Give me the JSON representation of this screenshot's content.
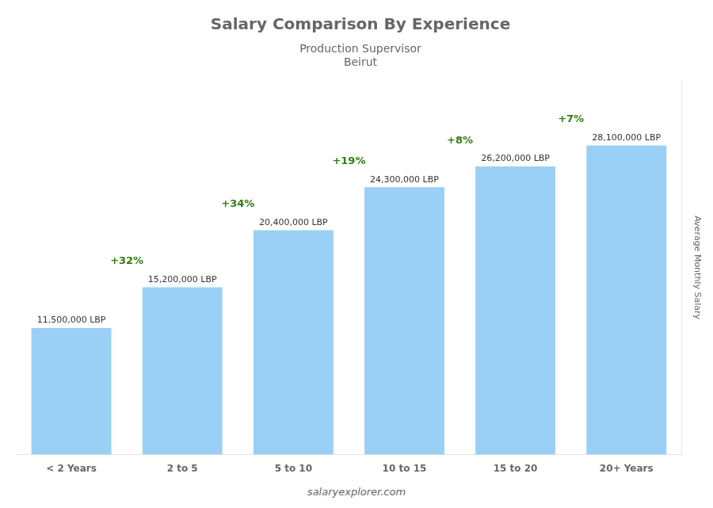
{
  "chart_data": {
    "type": "bar",
    "title": "Salary Comparison By Experience",
    "subtitle": [
      "Production Supervisor",
      "Beirut"
    ],
    "ylabel": "Average Monthly Salary",
    "footer": "salaryexplorer.com",
    "categories": [
      "< 2 Years",
      "2 to 5",
      "5 to 10",
      "10 to 15",
      "15 to 20",
      "20+ Years"
    ],
    "values": [
      11500000,
      15200000,
      20400000,
      24300000,
      26200000,
      28100000
    ],
    "value_labels": [
      "11,500,000 LBP",
      "15,200,000 LBP",
      "20,400,000 LBP",
      "24,300,000 LBP",
      "26,200,000 LBP",
      "28,100,000 LBP"
    ],
    "change_labels": [
      "+32%",
      "+34%",
      "+19%",
      "+8%",
      "+7%"
    ],
    "data_labels": true,
    "ylim": [
      0,
      34000000
    ],
    "tick_labels": "x",
    "grid": false
  }
}
